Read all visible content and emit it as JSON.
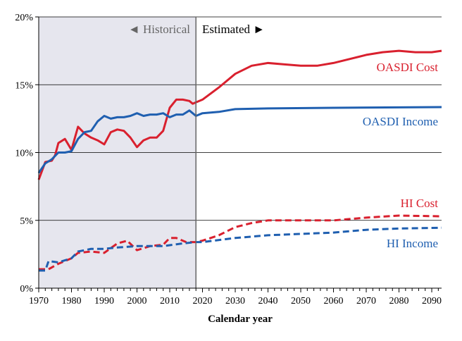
{
  "chart_data": {
    "type": "line",
    "xlabel": "Calendar year",
    "ylabel": "",
    "xlim": [
      1970,
      2093
    ],
    "ylim": [
      0,
      20
    ],
    "x_ticks": [
      1970,
      1980,
      1990,
      2000,
      2010,
      2020,
      2030,
      2040,
      2050,
      2060,
      2070,
      2080,
      2090
    ],
    "y_ticks": [
      0,
      5,
      10,
      15,
      20
    ],
    "y_tick_labels": [
      "0%",
      "5%",
      "10%",
      "15%",
      "20%"
    ],
    "grid": "horizontal",
    "divider_year": 2018,
    "region_labels": {
      "historical": "◄ Historical",
      "estimated": "Estimated ►"
    },
    "colors": {
      "cost": "#d9202e",
      "income": "#1f5fb0",
      "historical_shade": "#e6e6ee"
    },
    "series": [
      {
        "name": "OASDI Cost",
        "style": "solid",
        "color": "#d9202e",
        "x": [
          1970,
          1972,
          1974,
          1975,
          1976,
          1978,
          1980,
          1982,
          1984,
          1986,
          1988,
          1990,
          1992,
          1994,
          1996,
          1998,
          2000,
          2002,
          2004,
          2006,
          2008,
          2010,
          2012,
          2014,
          2016,
          2017,
          2018,
          2020,
          2025,
          2030,
          2035,
          2040,
          2045,
          2050,
          2055,
          2060,
          2065,
          2070,
          2075,
          2080,
          2085,
          2090,
          2093
        ],
        "y": [
          8.0,
          9.3,
          9.4,
          9.8,
          10.7,
          11.0,
          10.2,
          11.9,
          11.4,
          11.1,
          10.9,
          10.6,
          11.5,
          11.7,
          11.6,
          11.1,
          10.4,
          10.9,
          11.1,
          11.1,
          11.6,
          13.3,
          13.9,
          13.9,
          13.8,
          13.6,
          13.7,
          13.9,
          14.8,
          15.8,
          16.4,
          16.6,
          16.5,
          16.4,
          16.4,
          16.6,
          16.9,
          17.2,
          17.4,
          17.5,
          17.4,
          17.4,
          17.5
        ]
      },
      {
        "name": "OASDI Income",
        "style": "solid",
        "color": "#1f5fb0",
        "x": [
          1970,
          1972,
          1974,
          1976,
          1978,
          1980,
          1982,
          1984,
          1986,
          1988,
          1990,
          1992,
          1994,
          1996,
          1998,
          2000,
          2002,
          2004,
          2006,
          2008,
          2010,
          2012,
          2014,
          2016,
          2018,
          2020,
          2025,
          2030,
          2040,
          2060,
          2093
        ],
        "y": [
          8.5,
          9.2,
          9.5,
          10.0,
          10.0,
          10.1,
          11.0,
          11.5,
          11.6,
          12.3,
          12.7,
          12.5,
          12.6,
          12.6,
          12.7,
          12.9,
          12.7,
          12.8,
          12.8,
          12.9,
          12.6,
          12.8,
          12.8,
          13.1,
          12.7,
          12.9,
          13.0,
          13.2,
          13.25,
          13.3,
          13.35
        ]
      },
      {
        "name": "HI Cost",
        "style": "dashed",
        "color": "#d9202e",
        "x": [
          1970,
          1973,
          1976,
          1980,
          1982,
          1986,
          1990,
          1994,
          1997,
          2000,
          2004,
          2008,
          2010,
          2012,
          2015,
          2018,
          2020,
          2025,
          2030,
          2035,
          2040,
          2050,
          2060,
          2070,
          2080,
          2093
        ],
        "y": [
          1.4,
          1.4,
          1.8,
          2.2,
          2.6,
          2.7,
          2.6,
          3.3,
          3.5,
          2.8,
          3.1,
          3.2,
          3.7,
          3.7,
          3.4,
          3.4,
          3.5,
          3.9,
          4.5,
          4.8,
          5.0,
          5.0,
          5.0,
          5.2,
          5.35,
          5.3
        ]
      },
      {
        "name": "HI Income",
        "style": "dashed",
        "color": "#1f5fb0",
        "x": [
          1970,
          1972,
          1973,
          1976,
          1980,
          1982,
          1986,
          1990,
          1994,
          2000,
          2008,
          2014,
          2018,
          2020,
          2030,
          2040,
          2050,
          2060,
          2070,
          2080,
          2093
        ],
        "y": [
          1.3,
          1.3,
          2.0,
          1.9,
          2.2,
          2.7,
          2.9,
          2.9,
          3.0,
          3.1,
          3.1,
          3.3,
          3.4,
          3.4,
          3.7,
          3.9,
          4.0,
          4.1,
          4.3,
          4.4,
          4.45
        ]
      }
    ]
  }
}
